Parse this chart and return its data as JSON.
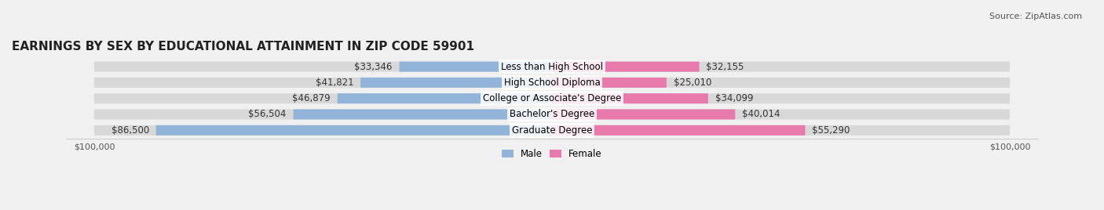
{
  "title": "EARNINGS BY SEX BY EDUCATIONAL ATTAINMENT IN ZIP CODE 59901",
  "source": "Source: ZipAtlas.com",
  "categories": [
    "Less than High School",
    "High School Diploma",
    "College or Associate's Degree",
    "Bachelor's Degree",
    "Graduate Degree"
  ],
  "male_values": [
    33346,
    41821,
    46879,
    56504,
    86500
  ],
  "female_values": [
    32155,
    25010,
    34099,
    40014,
    55290
  ],
  "male_color": "#92b4d8",
  "female_color": "#e87aab",
  "max_val": 100000,
  "background_color": "#f0f0f0",
  "bar_bg_color": "#e0e0e0",
  "title_fontsize": 11,
  "source_fontsize": 8,
  "label_fontsize": 8.5,
  "axis_label_fontsize": 8
}
